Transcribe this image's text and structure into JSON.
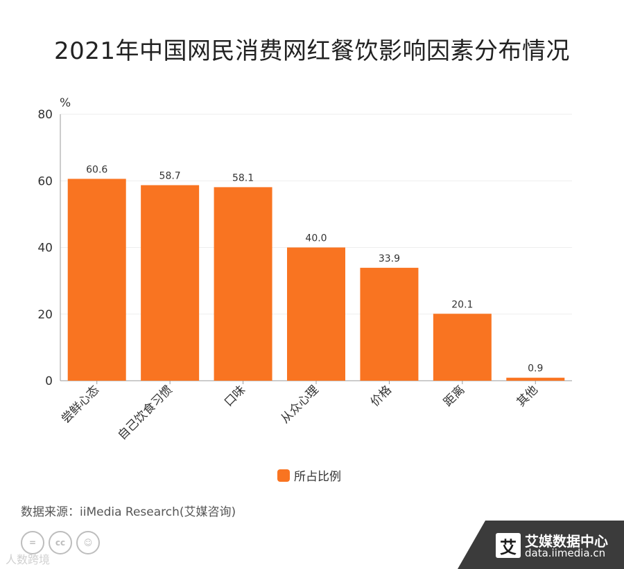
{
  "title": "2021年中国网民消费网红餐饮影响因素分布情况",
  "source": "数据来源：iiMedia Research(艾媒咨询)",
  "watermark": "人数跨境",
  "brand": {
    "logo_char": "艾",
    "name": "艾媒数据中心",
    "url": "data.iimedia.cn"
  },
  "colors": {
    "bar": "#F97421",
    "axis": "#999999",
    "grid": "#eeeeee",
    "footer_bg": "#3b3b3b"
  },
  "chart_data": {
    "type": "bar",
    "title": "2021年中国网民消费网红餐饮影响因素分布情况",
    "unit": "%",
    "categories": [
      "尝鲜心态",
      "自己饮食习惯",
      "口味",
      "从众心理",
      "价格",
      "距离",
      "其他"
    ],
    "series": [
      {
        "name": "所占比例",
        "values": [
          60.6,
          58.7,
          58.1,
          40.0,
          33.9,
          20.1,
          0.9
        ]
      }
    ],
    "value_labels": [
      "60.6",
      "58.7",
      "58.1",
      "40.0",
      "33.9",
      "20.1",
      "0.9"
    ],
    "ylim": [
      0,
      80
    ],
    "yticks": [
      0,
      20,
      40,
      60,
      80
    ],
    "grid": true,
    "legend": "bottom"
  }
}
